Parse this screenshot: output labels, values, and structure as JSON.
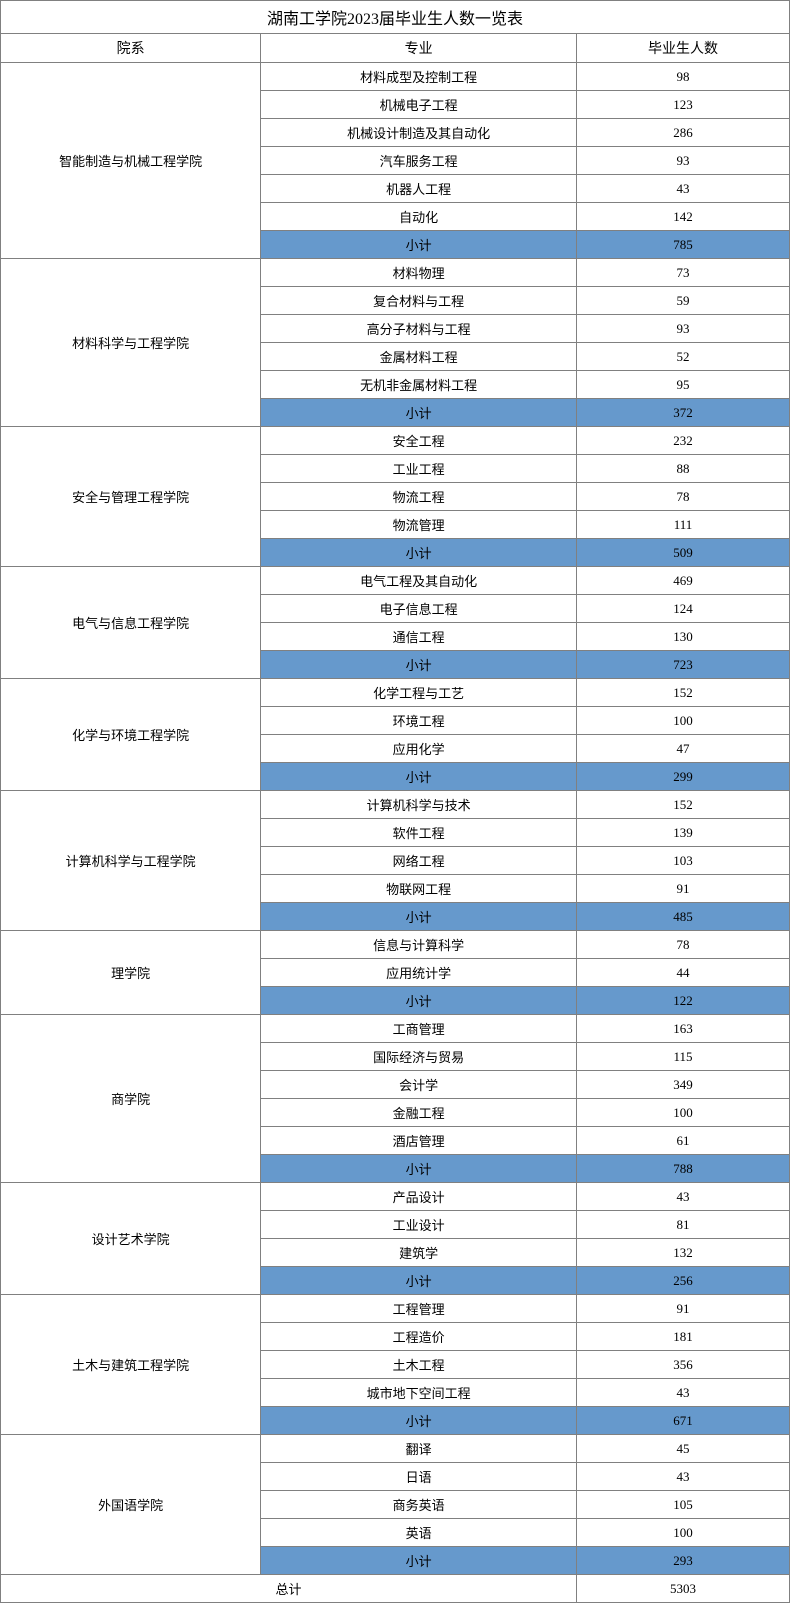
{
  "title": "湖南工学院2023届毕业生人数一览表",
  "headers": {
    "department": "院系",
    "major": "专业",
    "count": "毕业生人数"
  },
  "subtotal_label": "小计",
  "total_label": "总计",
  "total_value": "5303",
  "subtotal_bg": "#6699cc",
  "border_color": "#808080",
  "departments": [
    {
      "name": "智能制造与机械工程学院",
      "majors": [
        {
          "name": "材料成型及控制工程",
          "count": "98"
        },
        {
          "name": "机械电子工程",
          "count": "123"
        },
        {
          "name": "机械设计制造及其自动化",
          "count": "286"
        },
        {
          "name": "汽车服务工程",
          "count": "93"
        },
        {
          "name": "机器人工程",
          "count": "43"
        },
        {
          "name": "自动化",
          "count": "142"
        }
      ],
      "subtotal": "785"
    },
    {
      "name": "材料科学与工程学院",
      "majors": [
        {
          "name": "材料物理",
          "count": "73"
        },
        {
          "name": "复合材料与工程",
          "count": "59"
        },
        {
          "name": "高分子材料与工程",
          "count": "93"
        },
        {
          "name": "金属材料工程",
          "count": "52"
        },
        {
          "name": "无机非金属材料工程",
          "count": "95"
        }
      ],
      "subtotal": "372"
    },
    {
      "name": "安全与管理工程学院",
      "majors": [
        {
          "name": "安全工程",
          "count": "232"
        },
        {
          "name": "工业工程",
          "count": "88"
        },
        {
          "name": "物流工程",
          "count": "78"
        },
        {
          "name": "物流管理",
          "count": "111"
        }
      ],
      "subtotal": "509"
    },
    {
      "name": "电气与信息工程学院",
      "majors": [
        {
          "name": "电气工程及其自动化",
          "count": "469"
        },
        {
          "name": "电子信息工程",
          "count": "124"
        },
        {
          "name": "通信工程",
          "count": "130"
        }
      ],
      "subtotal": "723"
    },
    {
      "name": "化学与环境工程学院",
      "majors": [
        {
          "name": "化学工程与工艺",
          "count": "152"
        },
        {
          "name": "环境工程",
          "count": "100"
        },
        {
          "name": "应用化学",
          "count": "47"
        }
      ],
      "subtotal": "299"
    },
    {
      "name": "计算机科学与工程学院",
      "majors": [
        {
          "name": "计算机科学与技术",
          "count": "152"
        },
        {
          "name": "软件工程",
          "count": "139"
        },
        {
          "name": "网络工程",
          "count": "103"
        },
        {
          "name": "物联网工程",
          "count": "91"
        }
      ],
      "subtotal": "485"
    },
    {
      "name": "理学院",
      "majors": [
        {
          "name": "信息与计算科学",
          "count": "78"
        },
        {
          "name": "应用统计学",
          "count": "44"
        }
      ],
      "subtotal": "122"
    },
    {
      "name": "商学院",
      "majors": [
        {
          "name": "工商管理",
          "count": "163"
        },
        {
          "name": "国际经济与贸易",
          "count": "115"
        },
        {
          "name": "会计学",
          "count": "349"
        },
        {
          "name": "金融工程",
          "count": "100"
        },
        {
          "name": "酒店管理",
          "count": "61"
        }
      ],
      "subtotal": "788"
    },
    {
      "name": "设计艺术学院",
      "majors": [
        {
          "name": "产品设计",
          "count": "43"
        },
        {
          "name": "工业设计",
          "count": "81"
        },
        {
          "name": "建筑学",
          "count": "132"
        }
      ],
      "subtotal": "256"
    },
    {
      "name": "土木与建筑工程学院",
      "majors": [
        {
          "name": "工程管理",
          "count": "91"
        },
        {
          "name": "工程造价",
          "count": "181"
        },
        {
          "name": "土木工程",
          "count": "356"
        },
        {
          "name": "城市地下空间工程",
          "count": "43"
        }
      ],
      "subtotal": "671"
    },
    {
      "name": "外国语学院",
      "majors": [
        {
          "name": "翻译",
          "count": "45"
        },
        {
          "name": "日语",
          "count": "43"
        },
        {
          "name": "商务英语",
          "count": "105"
        },
        {
          "name": "英语",
          "count": "100"
        }
      ],
      "subtotal": "293"
    }
  ]
}
